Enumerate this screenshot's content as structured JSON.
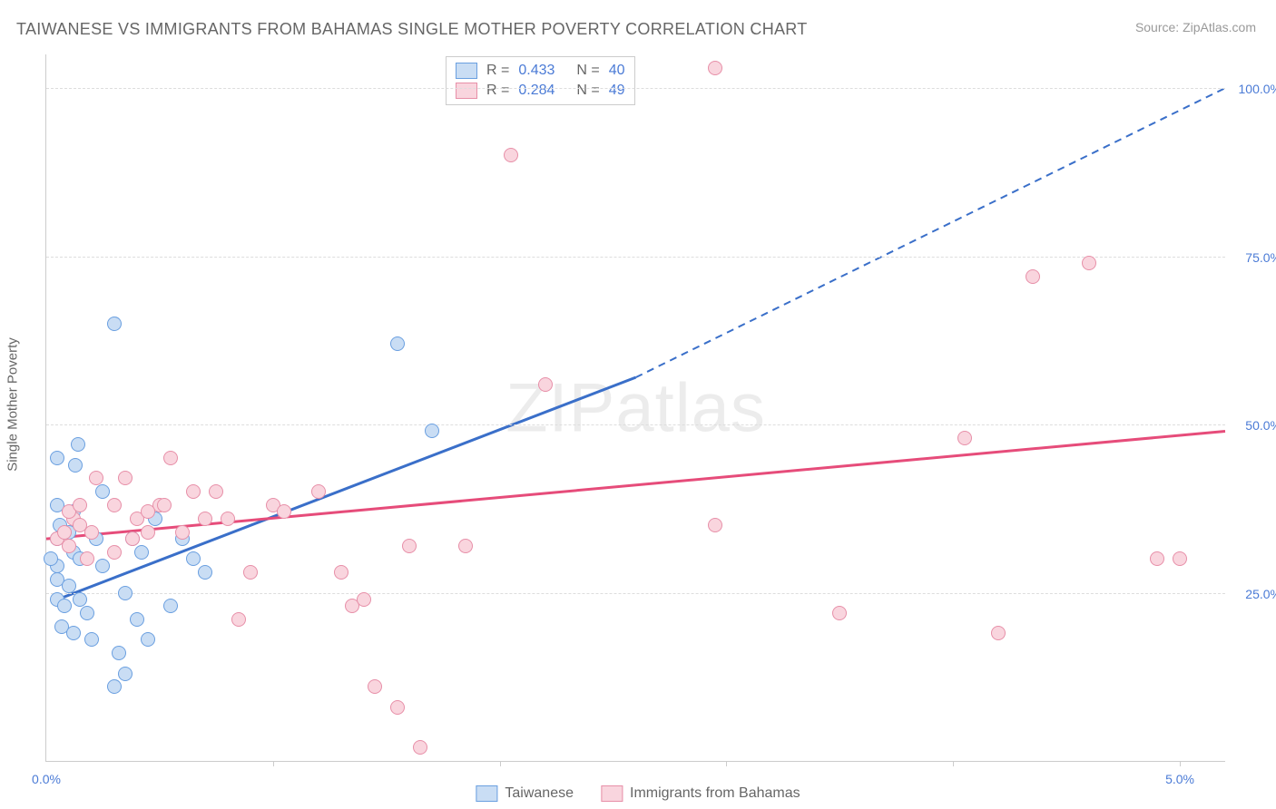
{
  "title": "TAIWANESE VS IMMIGRANTS FROM BAHAMAS SINGLE MOTHER POVERTY CORRELATION CHART",
  "source": "Source: ZipAtlas.com",
  "watermark": "ZIPatlas",
  "y_axis_title": "Single Mother Poverty",
  "chart": {
    "type": "scatter",
    "xlim": [
      0,
      5.2
    ],
    "ylim": [
      0,
      105
    ],
    "x_ticks": [
      1,
      2,
      3,
      4,
      5
    ],
    "y_grid": [
      25,
      50,
      75,
      100
    ],
    "y_tick_labels": [
      "25.0%",
      "50.0%",
      "75.0%",
      "100.0%"
    ],
    "x_min_label": "0.0%",
    "x_max_label": "5.0%",
    "x_label_color": "#4b7bd6",
    "y_label_color": "#4b7bd6",
    "background_color": "#ffffff",
    "grid_color": "#dddddd",
    "axis_color": "#cccccc",
    "marker_size": 16,
    "line_width": 3
  },
  "series": [
    {
      "name": "Taiwanese",
      "fill": "#c9ddf4",
      "stroke": "#6a9fe0",
      "line_color": "#3a6fc9",
      "R": "0.433",
      "N": "40",
      "trend": {
        "x1": 0.05,
        "y1": 24,
        "x2": 2.6,
        "y2": 57,
        "extend_to_x": 5.2,
        "extend_to_y": 100
      },
      "points": [
        [
          0.05,
          24
        ],
        [
          0.05,
          27
        ],
        [
          0.05,
          29
        ],
        [
          0.05,
          33
        ],
        [
          0.06,
          35
        ],
        [
          0.07,
          20
        ],
        [
          0.08,
          23
        ],
        [
          0.1,
          26
        ],
        [
          0.1,
          34
        ],
        [
          0.12,
          31
        ],
        [
          0.12,
          37
        ],
        [
          0.13,
          44
        ],
        [
          0.14,
          47
        ],
        [
          0.15,
          30
        ],
        [
          0.18,
          22
        ],
        [
          0.2,
          18
        ],
        [
          0.22,
          33
        ],
        [
          0.25,
          29
        ],
        [
          0.25,
          40
        ],
        [
          0.3,
          65
        ],
        [
          0.32,
          16
        ],
        [
          0.35,
          25
        ],
        [
          0.38,
          33
        ],
        [
          0.4,
          21
        ],
        [
          0.42,
          31
        ],
        [
          0.45,
          18
        ],
        [
          0.48,
          36
        ],
        [
          0.55,
          23
        ],
        [
          0.6,
          33
        ],
        [
          0.65,
          30
        ],
        [
          0.7,
          28
        ],
        [
          0.3,
          11
        ],
        [
          0.35,
          13
        ],
        [
          0.12,
          19
        ],
        [
          0.15,
          24
        ],
        [
          1.55,
          62
        ],
        [
          1.7,
          49
        ],
        [
          0.05,
          45
        ],
        [
          0.05,
          38
        ],
        [
          0.02,
          30
        ]
      ]
    },
    {
      "name": "Immigrants from Bahamas",
      "fill": "#f9d5de",
      "stroke": "#e78fa8",
      "line_color": "#e64c7a",
      "R": "0.284",
      "N": "49",
      "trend": {
        "x1": 0.0,
        "y1": 33,
        "x2": 5.2,
        "y2": 49,
        "extend_to_x": null,
        "extend_to_y": null
      },
      "points": [
        [
          0.05,
          33
        ],
        [
          0.08,
          34
        ],
        [
          0.1,
          32
        ],
        [
          0.12,
          36
        ],
        [
          0.15,
          35
        ],
        [
          0.18,
          30
        ],
        [
          0.2,
          34
        ],
        [
          0.3,
          38
        ],
        [
          0.35,
          42
        ],
        [
          0.4,
          36
        ],
        [
          0.45,
          34
        ],
        [
          0.5,
          38
        ],
        [
          0.55,
          45
        ],
        [
          0.6,
          34
        ],
        [
          0.65,
          40
        ],
        [
          0.7,
          36
        ],
        [
          0.75,
          40
        ],
        [
          0.8,
          36
        ],
        [
          0.85,
          21
        ],
        [
          0.9,
          28
        ],
        [
          1.0,
          38
        ],
        [
          1.05,
          37
        ],
        [
          1.2,
          40
        ],
        [
          1.3,
          28
        ],
        [
          1.35,
          23
        ],
        [
          1.4,
          24
        ],
        [
          1.45,
          11
        ],
        [
          1.55,
          8
        ],
        [
          1.6,
          32
        ],
        [
          1.65,
          2
        ],
        [
          1.85,
          32
        ],
        [
          2.05,
          90
        ],
        [
          2.2,
          56
        ],
        [
          2.95,
          35
        ],
        [
          2.95,
          103
        ],
        [
          3.5,
          22
        ],
        [
          4.05,
          48
        ],
        [
          4.35,
          72
        ],
        [
          4.2,
          19
        ],
        [
          4.6,
          74
        ],
        [
          4.9,
          30
        ],
        [
          5.0,
          30
        ],
        [
          0.1,
          37
        ],
        [
          0.15,
          38
        ],
        [
          0.22,
          42
        ],
        [
          0.3,
          31
        ],
        [
          0.38,
          33
        ],
        [
          0.45,
          37
        ],
        [
          0.52,
          38
        ]
      ]
    }
  ],
  "stats_value_color": "#4b7bd6",
  "legend": {
    "series1": "Taiwanese",
    "series2": "Immigrants from Bahamas"
  }
}
